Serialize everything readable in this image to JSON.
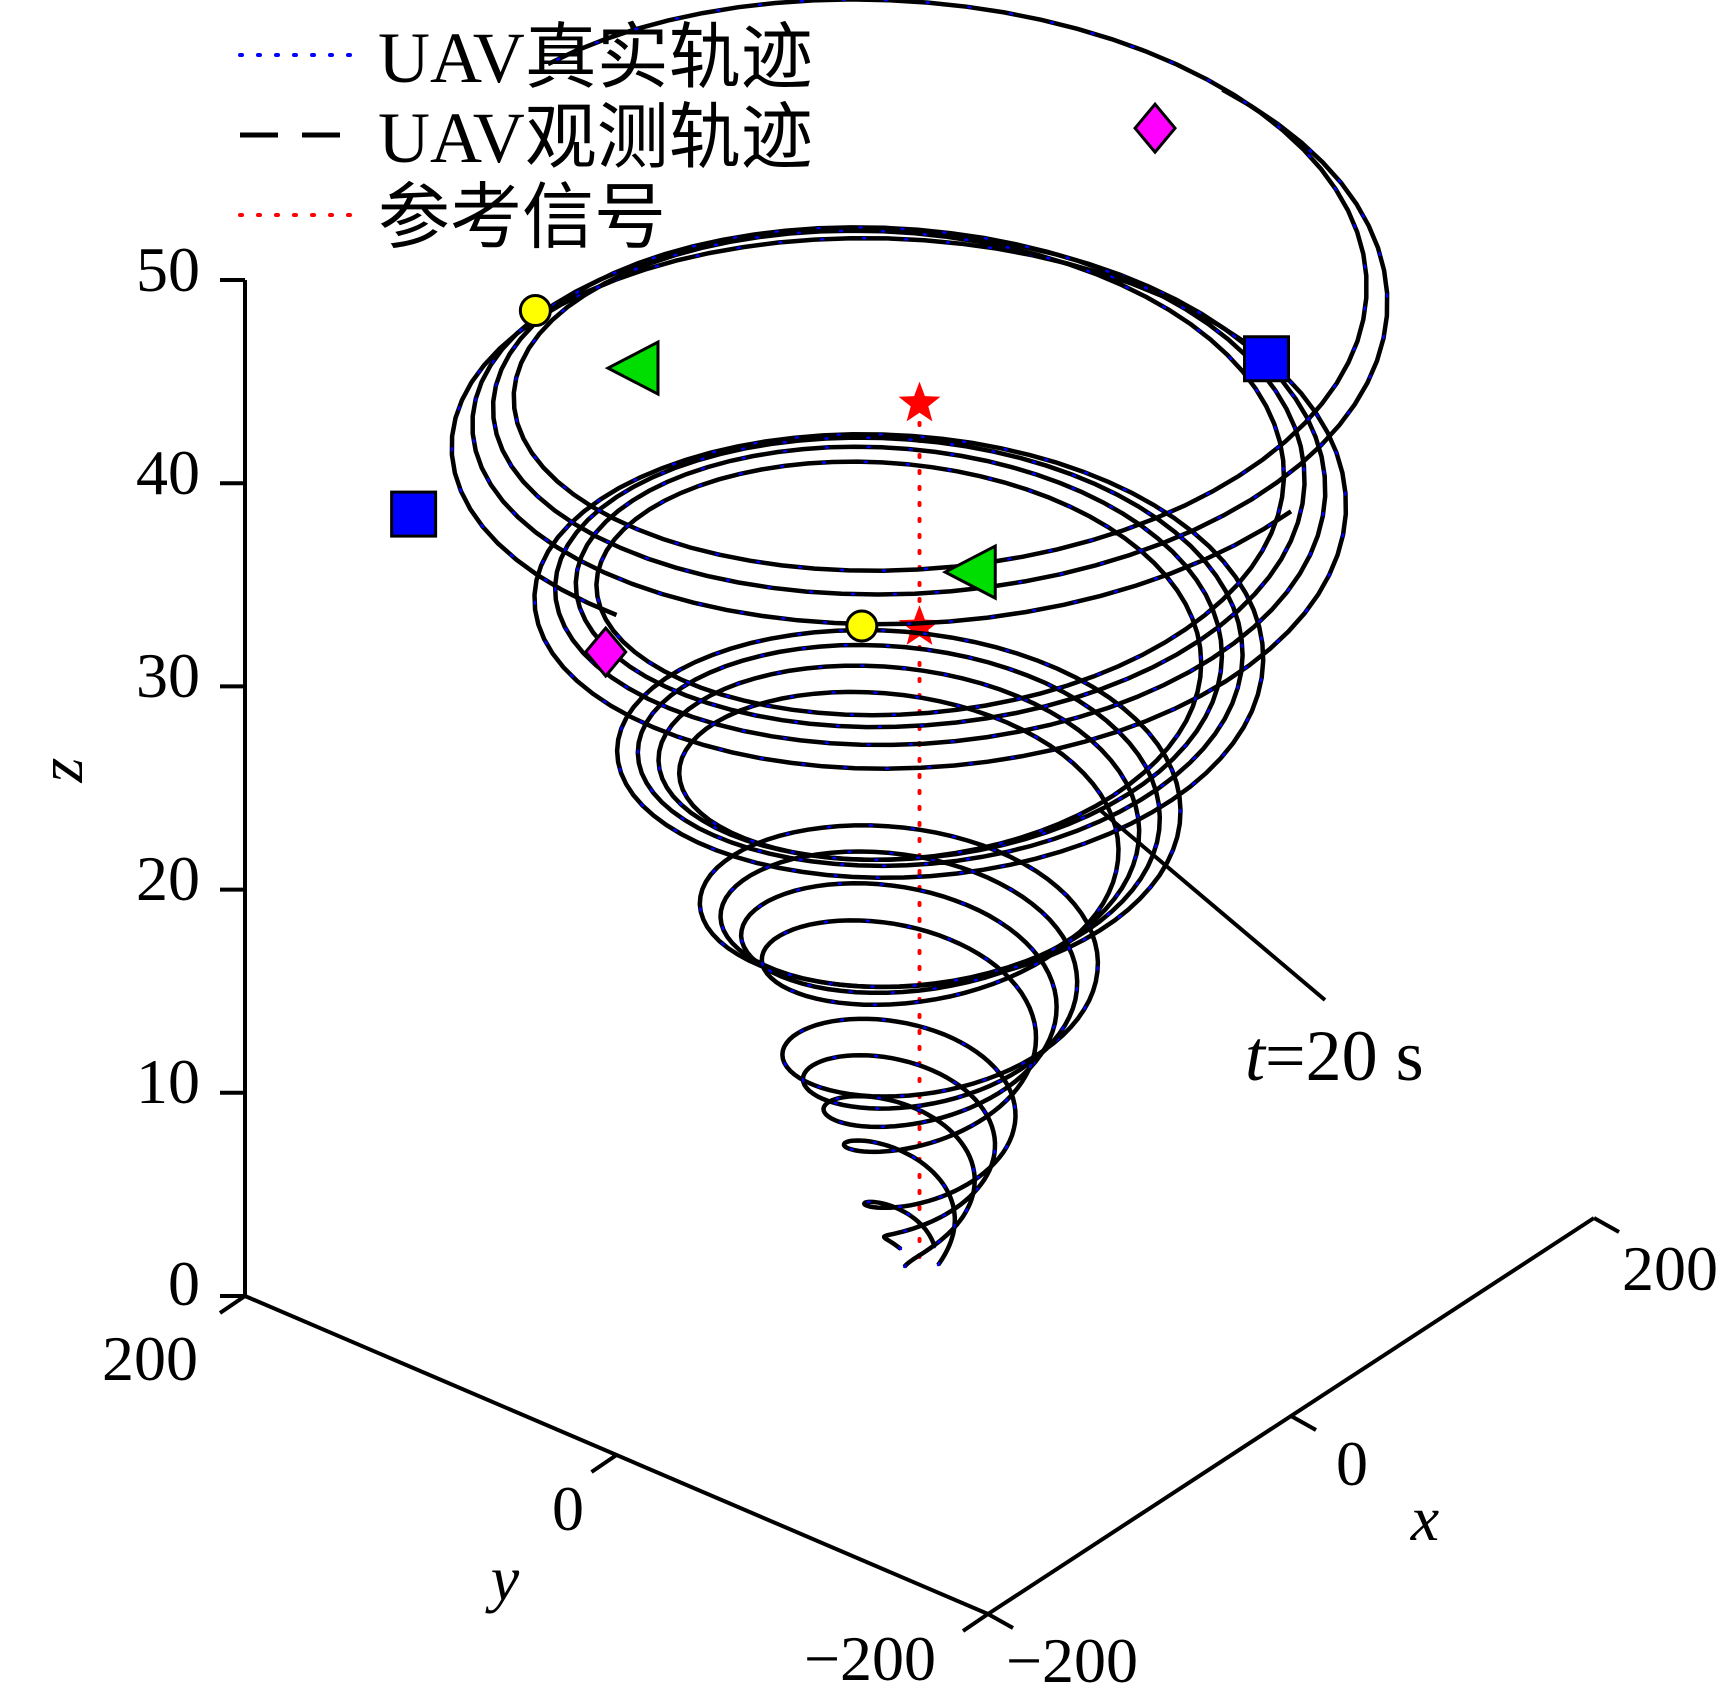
{
  "chart_data": {
    "type": "line",
    "projection": "3d",
    "xlabel": "x",
    "ylabel": "y",
    "zlabel": "z",
    "xlim": [
      -200,
      200
    ],
    "ylim": [
      -200,
      200
    ],
    "zlim": [
      0,
      50
    ],
    "x_ticks": [
      "−200",
      "0",
      "200"
    ],
    "y_ticks": [
      "−200",
      "0",
      "200"
    ],
    "z_ticks": [
      "0",
      "10",
      "20",
      "30",
      "40",
      "50"
    ],
    "grid": false,
    "legend_position": "top-left",
    "legend": [
      {
        "label": "UAV真实轨迹",
        "style": "dotted",
        "color": "#0000ff"
      },
      {
        "label": "UAV观测轨迹",
        "style": "dashed",
        "color": "#000000"
      },
      {
        "label": "参考信号",
        "style": "dotted",
        "color": "#ff0000"
      }
    ],
    "annotations": [
      {
        "text_italic": "t",
        "text_rest": "=20 s"
      }
    ],
    "series": [
      {
        "marker": "circle",
        "marker_color": "#ffff00",
        "points": [
          [
            -180,
            60,
            53
          ],
          [
            60,
            80,
            25
          ]
        ]
      },
      {
        "marker": "square",
        "marker_color": "#0000ff",
        "points": [
          [
            -150,
            150,
            38
          ],
          [
            180,
            -40,
            37
          ]
        ]
      },
      {
        "marker": "diamond",
        "marker_color": "#ff00ff",
        "points": [
          [
            180,
            20,
            46
          ],
          [
            -60,
            120,
            28
          ]
        ]
      },
      {
        "marker": "triangle",
        "marker_color": "#00dd00",
        "points": [
          [
            -40,
            120,
            41
          ],
          [
            60,
            20,
            30
          ]
        ]
      }
    ],
    "reference_signal": {
      "color": "#ff0000",
      "x": 0,
      "y": 0,
      "z_range": [
        0,
        42
      ],
      "star_z": [
        42,
        31
      ]
    },
    "trajectory_spiral": {
      "turns": 5.5,
      "z_range": [
        0,
        53
      ],
      "radius_range": [
        10,
        200
      ]
    }
  }
}
